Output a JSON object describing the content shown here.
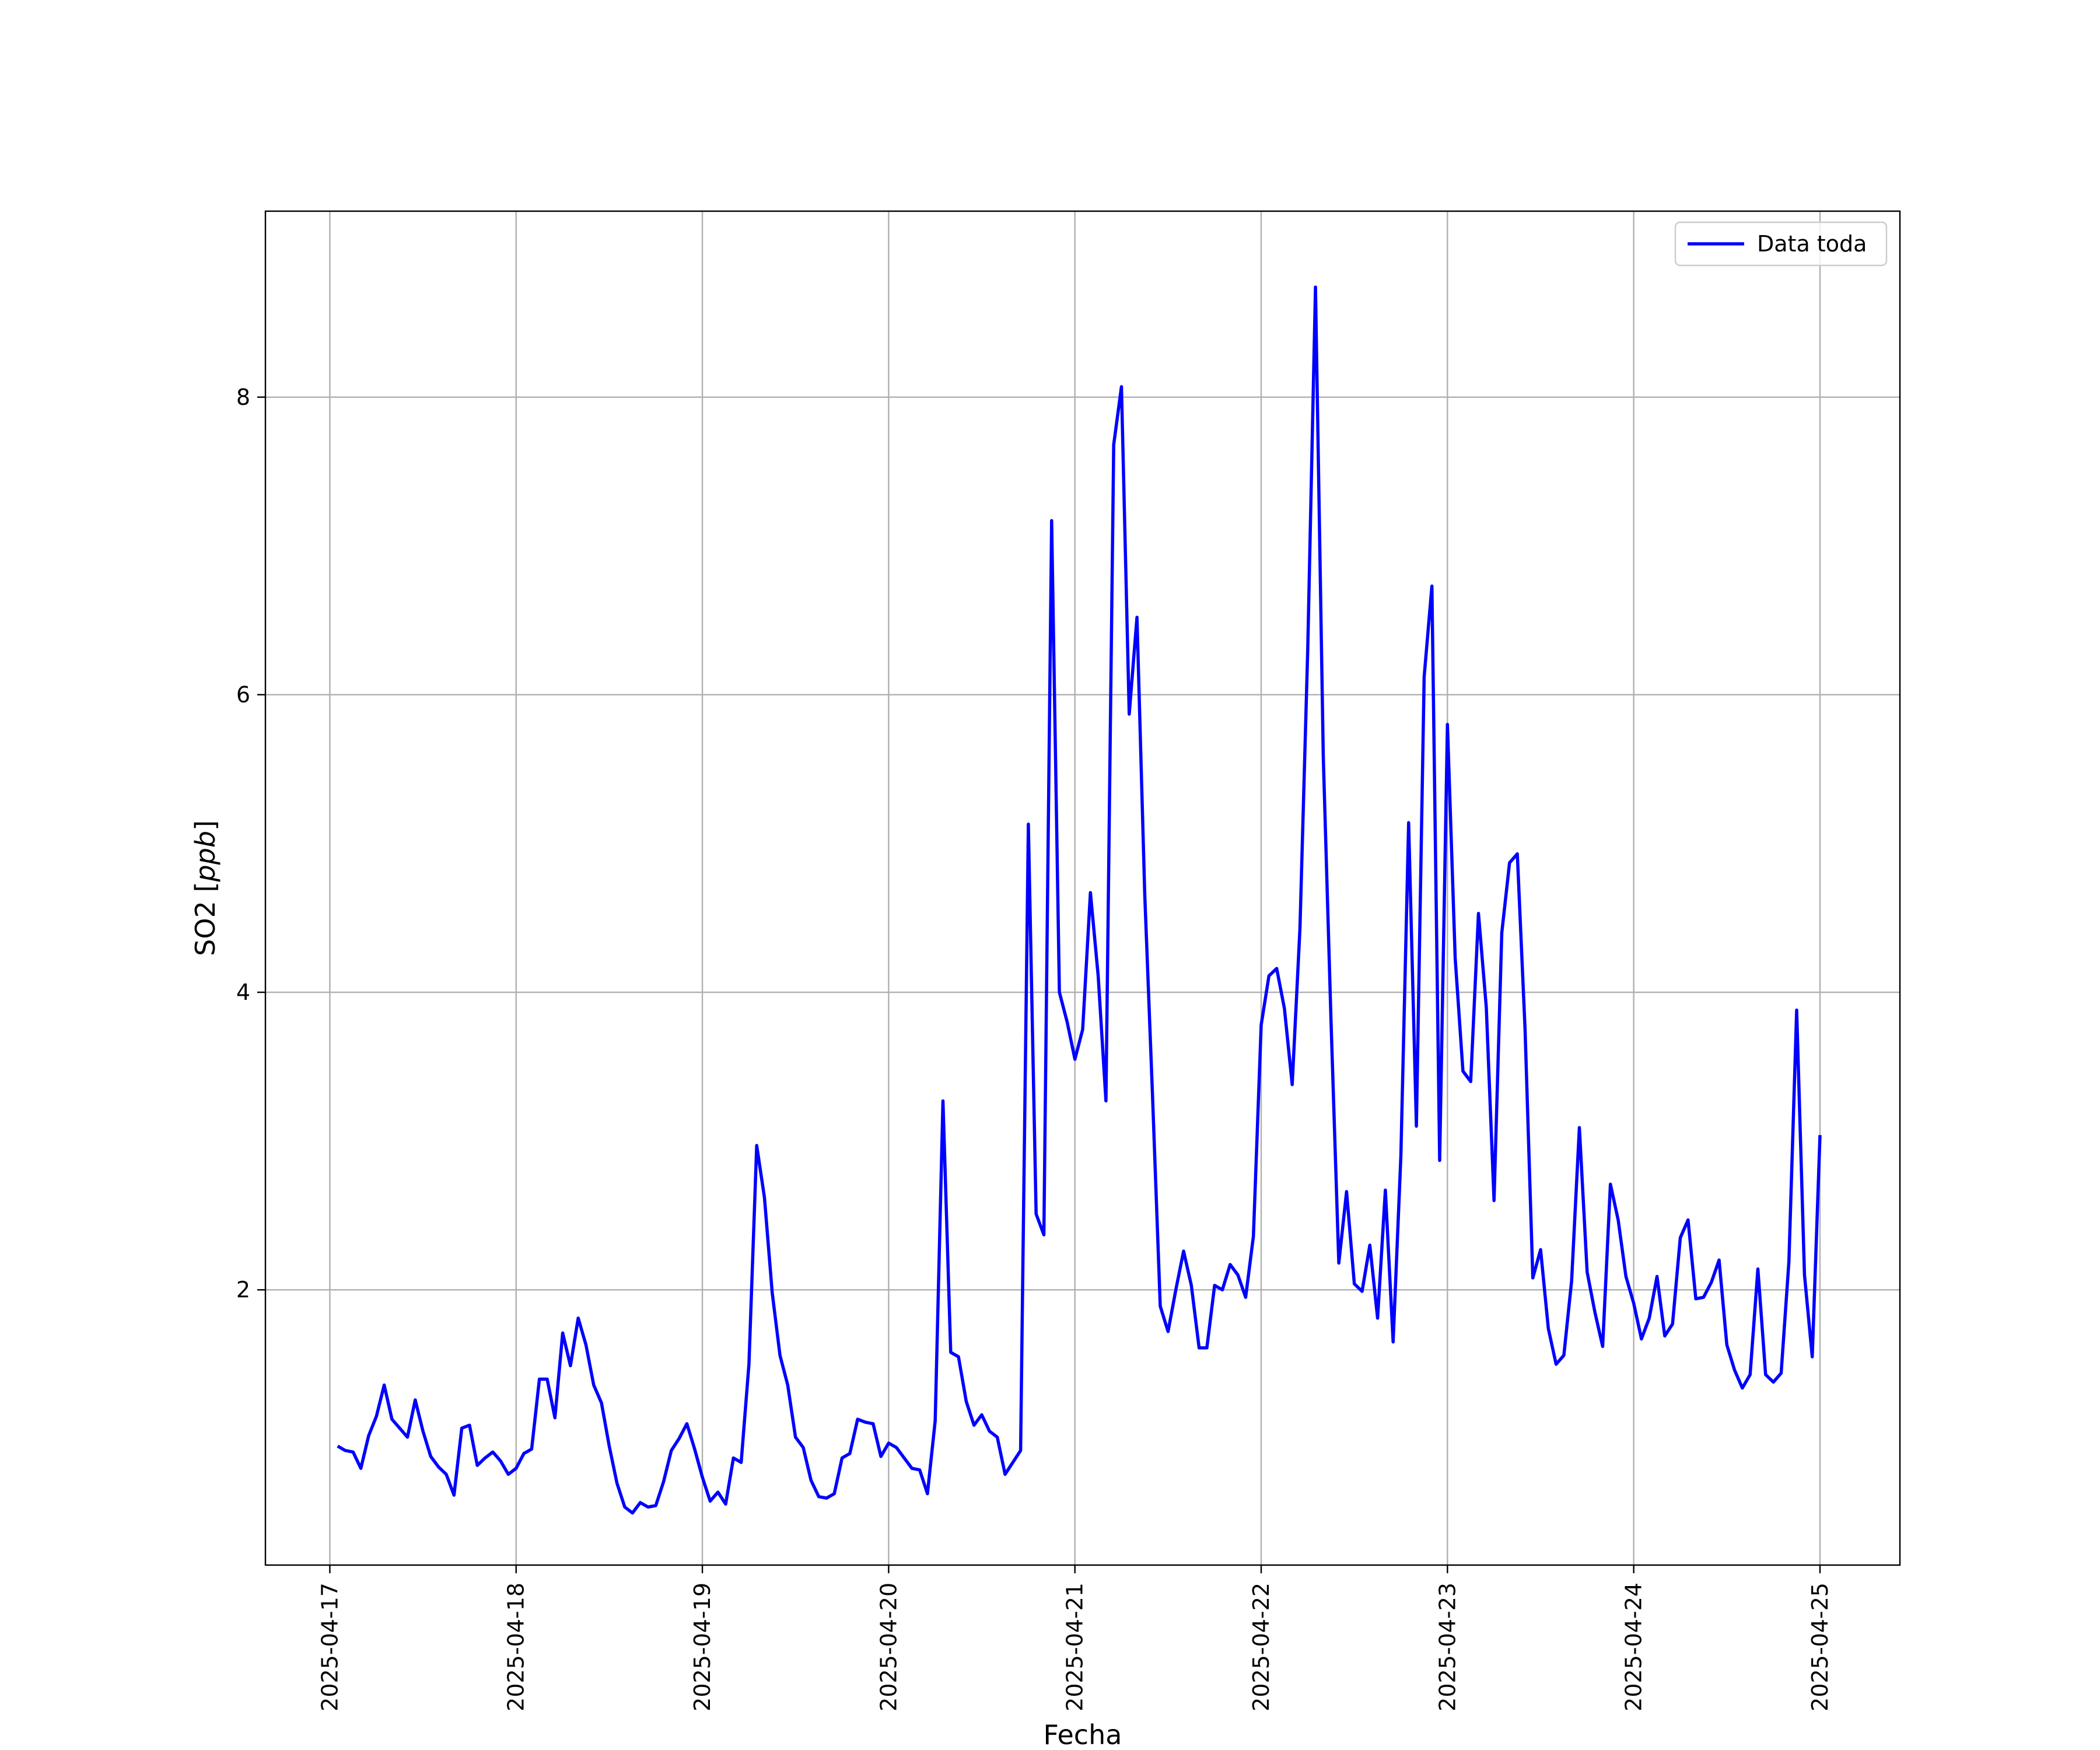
{
  "chart_data": {
    "type": "line",
    "title": "",
    "xlabel": "Fecha",
    "ylabel": "SO2 [",
    "ylabel_unit": "ppb",
    "ylabel_close": "]",
    "x_ticks": [
      "2025-04-17",
      "2025-04-18",
      "2025-04-19",
      "2025-04-20",
      "2025-04-21",
      "2025-04-22",
      "2025-04-23",
      "2025-04-24",
      "2025-04-25"
    ],
    "y_ticks": [
      "2",
      "4",
      "6",
      "8"
    ],
    "xlim": [
      "2025-04-16 15:42",
      "2025-04-25 10:18"
    ],
    "ylim": [
      0.15,
      9.25
    ],
    "grid": true,
    "legend_position": "top-right",
    "colors": {
      "line": "#0000ff",
      "grid": "#b0b0b0"
    },
    "series": [
      {
        "name": "Data toda",
        "x": [
          "2025-04-17 01:00",
          "2025-04-17 02:00",
          "2025-04-17 03:00",
          "2025-04-17 04:00",
          "2025-04-17 05:00",
          "2025-04-17 06:00",
          "2025-04-17 07:00",
          "2025-04-17 08:00",
          "2025-04-17 09:00",
          "2025-04-17 10:00",
          "2025-04-17 11:00",
          "2025-04-17 12:00",
          "2025-04-17 13:00",
          "2025-04-17 14:00",
          "2025-04-17 15:00",
          "2025-04-17 16:00",
          "2025-04-17 17:00",
          "2025-04-17 18:00",
          "2025-04-17 19:00",
          "2025-04-17 20:00",
          "2025-04-17 21:00",
          "2025-04-17 22:00",
          "2025-04-17 23:00",
          "2025-04-18 00:00",
          "2025-04-18 01:00",
          "2025-04-18 02:00",
          "2025-04-18 03:00",
          "2025-04-18 04:00",
          "2025-04-18 05:00",
          "2025-04-18 06:00",
          "2025-04-18 07:00",
          "2025-04-18 08:00",
          "2025-04-18 09:00",
          "2025-04-18 10:00",
          "2025-04-18 11:00",
          "2025-04-18 12:00",
          "2025-04-18 13:00",
          "2025-04-18 14:00",
          "2025-04-18 15:00",
          "2025-04-18 16:00",
          "2025-04-18 17:00",
          "2025-04-18 18:00",
          "2025-04-18 19:00",
          "2025-04-18 20:00",
          "2025-04-18 21:00",
          "2025-04-18 22:00",
          "2025-04-18 23:00",
          "2025-04-19 00:00",
          "2025-04-19 01:00",
          "2025-04-19 02:00",
          "2025-04-19 03:00",
          "2025-04-19 04:00",
          "2025-04-19 05:00",
          "2025-04-19 06:00",
          "2025-04-19 07:00",
          "2025-04-19 08:00",
          "2025-04-19 09:00",
          "2025-04-19 10:00",
          "2025-04-19 11:00",
          "2025-04-19 12:00",
          "2025-04-19 13:00",
          "2025-04-19 14:00",
          "2025-04-19 15:00",
          "2025-04-19 16:00",
          "2025-04-19 17:00",
          "2025-04-19 18:00",
          "2025-04-19 19:00",
          "2025-04-19 20:00",
          "2025-04-19 21:00",
          "2025-04-19 22:00",
          "2025-04-19 23:00",
          "2025-04-20 00:00",
          "2025-04-20 01:00",
          "2025-04-20 02:00",
          "2025-04-20 03:00",
          "2025-04-20 04:00",
          "2025-04-20 05:00",
          "2025-04-20 06:00",
          "2025-04-20 07:00",
          "2025-04-20 08:00",
          "2025-04-20 09:00",
          "2025-04-20 10:00",
          "2025-04-20 11:00",
          "2025-04-20 12:00",
          "2025-04-20 13:00",
          "2025-04-20 14:00",
          "2025-04-20 15:00",
          "2025-04-20 16:00",
          "2025-04-20 17:00",
          "2025-04-20 18:00",
          "2025-04-20 19:00",
          "2025-04-20 20:00",
          "2025-04-20 21:00",
          "2025-04-20 22:00",
          "2025-04-20 23:00",
          "2025-04-21 00:00",
          "2025-04-21 01:00",
          "2025-04-21 02:00",
          "2025-04-21 03:00",
          "2025-04-21 04:00",
          "2025-04-21 05:00",
          "2025-04-21 06:00",
          "2025-04-21 07:00",
          "2025-04-21 08:00",
          "2025-04-21 09:00",
          "2025-04-21 10:00",
          "2025-04-21 11:00",
          "2025-04-21 12:00",
          "2025-04-21 13:00",
          "2025-04-21 14:00",
          "2025-04-21 15:00",
          "2025-04-21 16:00",
          "2025-04-21 17:00",
          "2025-04-21 18:00",
          "2025-04-21 19:00",
          "2025-04-21 20:00",
          "2025-04-21 21:00",
          "2025-04-21 22:00",
          "2025-04-21 23:00",
          "2025-04-22 00:00",
          "2025-04-22 01:00",
          "2025-04-22 02:00",
          "2025-04-22 03:00",
          "2025-04-22 04:00",
          "2025-04-22 05:00",
          "2025-04-22 06:00",
          "2025-04-22 07:00",
          "2025-04-22 08:00",
          "2025-04-22 09:00",
          "2025-04-22 10:00",
          "2025-04-22 11:00",
          "2025-04-22 12:00",
          "2025-04-22 13:00",
          "2025-04-22 14:00",
          "2025-04-22 15:00",
          "2025-04-22 16:00",
          "2025-04-22 17:00",
          "2025-04-22 18:00",
          "2025-04-22 19:00",
          "2025-04-22 20:00",
          "2025-04-22 21:00",
          "2025-04-22 22:00",
          "2025-04-22 23:00",
          "2025-04-23 00:00",
          "2025-04-23 01:00",
          "2025-04-23 02:00",
          "2025-04-23 03:00",
          "2025-04-23 04:00",
          "2025-04-23 05:00",
          "2025-04-23 06:00",
          "2025-04-23 07:00",
          "2025-04-23 08:00",
          "2025-04-23 09:00",
          "2025-04-23 10:00",
          "2025-04-23 11:00",
          "2025-04-23 12:00",
          "2025-04-23 13:00",
          "2025-04-23 14:00",
          "2025-04-23 15:00",
          "2025-04-23 16:00",
          "2025-04-23 17:00",
          "2025-04-23 18:00",
          "2025-04-23 19:00",
          "2025-04-23 20:00",
          "2025-04-23 21:00",
          "2025-04-23 22:00",
          "2025-04-23 23:00",
          "2025-04-24 00:00",
          "2025-04-24 01:00",
          "2025-04-24 02:00",
          "2025-04-24 03:00",
          "2025-04-24 04:00",
          "2025-04-24 05:00",
          "2025-04-24 06:00",
          "2025-04-24 07:00",
          "2025-04-24 08:00",
          "2025-04-24 09:00",
          "2025-04-24 10:00",
          "2025-04-24 11:00",
          "2025-04-24 12:00",
          "2025-04-24 13:00",
          "2025-04-24 14:00",
          "2025-04-24 15:00",
          "2025-04-24 16:00",
          "2025-04-24 17:00",
          "2025-04-24 18:00",
          "2025-04-24 19:00",
          "2025-04-24 20:00",
          "2025-04-24 21:00",
          "2025-04-24 22:00",
          "2025-04-24 23:00",
          "2025-04-25 00:00"
        ],
        "values": [
          0.95,
          0.92,
          0.91,
          0.8,
          1.02,
          1.15,
          1.36,
          1.13,
          1.07,
          1.01,
          1.26,
          1.05,
          0.88,
          0.81,
          0.76,
          0.62,
          1.07,
          1.09,
          0.82,
          0.87,
          0.91,
          0.85,
          0.76,
          0.8,
          0.9,
          0.93,
          1.4,
          1.4,
          1.14,
          1.71,
          1.49,
          1.81,
          1.63,
          1.36,
          1.24,
          0.95,
          0.7,
          0.54,
          0.5,
          0.57,
          0.54,
          0.55,
          0.71,
          0.92,
          1.0,
          1.1,
          0.93,
          0.74,
          0.58,
          0.64,
          0.56,
          0.87,
          0.84,
          1.5,
          2.97,
          2.62,
          1.98,
          1.56,
          1.36,
          1.01,
          0.94,
          0.72,
          0.61,
          0.6,
          0.63,
          0.87,
          0.9,
          1.13,
          1.11,
          1.1,
          0.88,
          0.97,
          0.94,
          0.87,
          0.8,
          0.79,
          0.63,
          1.12,
          3.27,
          1.58,
          1.55,
          1.25,
          1.09,
          1.16,
          1.05,
          1.01,
          0.76,
          0.84,
          0.92,
          5.13,
          2.51,
          2.37,
          7.17,
          4.0,
          3.8,
          3.55,
          3.75,
          4.67,
          4.11,
          3.27,
          7.68,
          8.07,
          5.87,
          6.52,
          4.66,
          3.31,
          1.89,
          1.72,
          2.0,
          2.26,
          2.03,
          1.61,
          1.61,
          2.03,
          2.0,
          2.17,
          2.1,
          1.95,
          2.36,
          3.78,
          4.11,
          4.16,
          3.89,
          3.38,
          4.43,
          6.3,
          8.74,
          5.58,
          3.8,
          2.18,
          2.66,
          2.04,
          1.99,
          2.3,
          1.81,
          2.67,
          1.65,
          2.9,
          5.14,
          3.1,
          6.12,
          6.73,
          2.87,
          5.8,
          4.23,
          3.47,
          3.4,
          4.53,
          3.9,
          2.6,
          4.4,
          4.87,
          4.93,
          3.75,
          2.08,
          2.27,
          1.74,
          1.5,
          1.56,
          2.06,
          3.09,
          2.12,
          1.85,
          1.62,
          2.71,
          2.47,
          2.09,
          1.91,
          1.67,
          1.81,
          2.09,
          1.69,
          1.77,
          2.35,
          2.47,
          1.94,
          1.95,
          2.05,
          2.2,
          1.63,
          1.46,
          1.34,
          1.43,
          2.14,
          1.43,
          1.38,
          1.44,
          2.19,
          3.88,
          2.1,
          1.55,
          3.04
        ]
      }
    ]
  }
}
